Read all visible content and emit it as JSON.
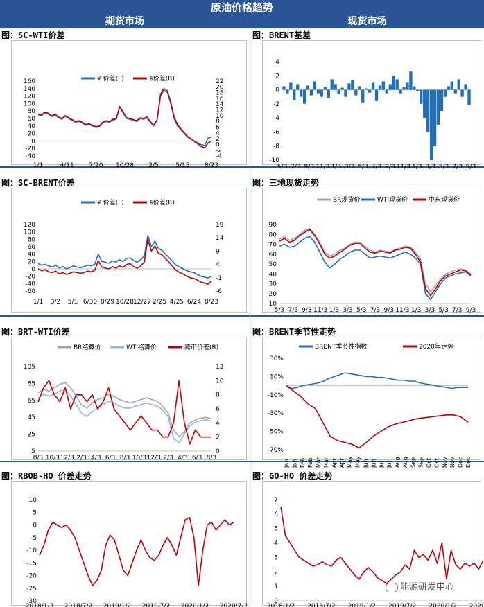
{
  "page_title": "原油价格趋势",
  "left_header": "期货市场",
  "right_header": "现货市场",
  "watermark": "能源研发中心",
  "chart_data": [
    {
      "id": "sc-wti",
      "title": "图：SC-WTI价差",
      "type": "line",
      "legend": [
        "¥ 价差(L)",
        "$价差(R)"
      ],
      "series_colors": [
        "#1f6fbf",
        "#c00000"
      ],
      "ylim": [
        -40,
        160
      ],
      "y_ticks": [
        "160",
        "140",
        "120",
        "100",
        "80",
        "60",
        "40",
        "20",
        "0",
        "-20",
        "-40"
      ],
      "y2lim": [
        -4,
        22
      ],
      "y2_ticks": [
        "22",
        "20",
        "18",
        "16",
        "14",
        "12",
        "10",
        "8",
        "6",
        "4",
        "2",
        "0",
        "-2",
        "-4"
      ],
      "x_ticks": [
        "1/1",
        "4/11",
        "7/20",
        "10/28",
        "2/5",
        "5/15",
        "8/23"
      ],
      "series": [
        {
          "name": "¥ 价差(L)",
          "values": [
            70,
            68,
            75,
            72,
            65,
            70,
            62,
            58,
            66,
            60,
            55,
            50,
            52,
            48,
            42,
            44,
            40,
            36,
            38,
            48,
            52,
            50,
            56,
            58,
            90,
            75,
            60,
            58,
            55,
            52,
            60,
            58,
            62,
            50,
            40,
            55,
            120,
            135,
            130,
            100,
            60,
            40,
            30,
            20,
            10,
            5,
            0,
            -5,
            -10,
            -12,
            8,
            10
          ]
        },
        {
          "name": "$价差(R)",
          "values": [
            72,
            70,
            77,
            74,
            67,
            72,
            64,
            60,
            68,
            62,
            57,
            52,
            54,
            50,
            44,
            46,
            42,
            38,
            40,
            50,
            54,
            52,
            58,
            60,
            92,
            78,
            62,
            60,
            57,
            54,
            62,
            60,
            64,
            52,
            42,
            57,
            125,
            140,
            134,
            104,
            64,
            44,
            32,
            22,
            12,
            6,
            -2,
            -8,
            -15,
            -18,
            -5,
            0
          ]
        }
      ]
    },
    {
      "id": "brent-basis",
      "title": "图：BRENT基差",
      "type": "bar",
      "ylim": [
        -10,
        4
      ],
      "y_ticks": [
        "4",
        "2",
        "0",
        "-2",
        "-4",
        "-6",
        "-8",
        "-10"
      ],
      "x_ticks": [
        "5/3",
        "7/3",
        "9/3",
        "11/3",
        "1/3",
        "3/3",
        "5/3",
        "7/3",
        "9/3",
        "11/3",
        "1/3",
        "3/3",
        "5/3",
        "7/3",
        "9/3"
      ],
      "values": [
        0.5,
        -0.5,
        1,
        -1.5,
        0.8,
        -1,
        -2,
        0.6,
        -0.8,
        1.2,
        -0.5,
        -1,
        0.4,
        -1.2,
        1.5,
        0.8,
        -0.6,
        0.3,
        -1,
        0.9,
        1.4,
        -0.8,
        0.5,
        -1.8,
        0.2,
        -0.4,
        1,
        -1.6,
        0.6,
        1.2,
        -0.5,
        0.8,
        2,
        1.5,
        -0.5,
        0.4,
        1,
        2.6,
        0.5,
        -0.2,
        -2,
        -4,
        -6,
        -10,
        -8,
        -5,
        -3,
        -1,
        0.5,
        1.2,
        -0.5,
        1.5,
        -1,
        0.8,
        -2.2
      ]
    },
    {
      "id": "sc-brent",
      "title": "图：SC-BRENT价差",
      "type": "line",
      "legend": [
        "¥ 价差(L)",
        "$价差(R)"
      ],
      "series_colors": [
        "#1f6fbf",
        "#c00000"
      ],
      "ylim": [
        -60,
        120
      ],
      "y_ticks": [
        "120",
        "100",
        "80",
        "60",
        "40",
        "20",
        "0",
        "-20",
        "-40",
        "-60"
      ],
      "y2lim": [
        -6,
        19
      ],
      "y2_ticks": [
        "19",
        "14",
        "9",
        "4",
        "-1",
        "-6"
      ],
      "x_ticks": [
        "1/1",
        "3/2",
        "5/1",
        "6/30",
        "8/29",
        "10/28",
        "12/27",
        "2/25",
        "4/25",
        "6/24",
        "8/23"
      ],
      "series": [
        {
          "name": "¥ 价差(L)",
          "values": [
            15,
            10,
            12,
            8,
            5,
            10,
            2,
            6,
            0,
            4,
            8,
            5,
            3,
            6,
            10,
            8,
            12,
            40,
            20,
            18,
            15,
            22,
            18,
            25,
            20,
            28,
            30,
            22,
            18,
            25,
            35,
            90,
            60,
            75,
            55,
            50,
            40,
            30,
            20,
            10,
            5,
            0,
            -5,
            -8,
            -10,
            -15,
            -20,
            -22,
            -25,
            -20
          ]
        },
        {
          "name": "$价差(R)",
          "values": [
            0,
            -5,
            -2,
            -8,
            -10,
            -6,
            -14,
            -10,
            -15,
            -12,
            -8,
            -10,
            -12,
            -10,
            -6,
            -8,
            -4,
            22,
            5,
            2,
            0,
            6,
            2,
            8,
            4,
            12,
            14,
            6,
            2,
            8,
            18,
            80,
            48,
            62,
            42,
            38,
            28,
            18,
            6,
            -4,
            -10,
            -14,
            -20,
            -24,
            -26,
            -30,
            -36,
            -38,
            -42,
            -32
          ]
        }
      ]
    },
    {
      "id": "three-spot",
      "title": "图：三地现货走势",
      "type": "line",
      "legend": [
        "BR现货价",
        "WTI现货价",
        "中东现货价"
      ],
      "series_colors": [
        "#a6a6a6",
        "#1f6fbf",
        "#c00000"
      ],
      "ylim": [
        10,
        90
      ],
      "y_ticks": [
        "90",
        "80",
        "70",
        "60",
        "50",
        "40",
        "30",
        "20",
        "10"
      ],
      "x_ticks": [
        "5/3",
        "7/3",
        "9/3",
        "11/3",
        "1/3",
        "3/3",
        "5/3",
        "7/3",
        "9/3",
        "11/3",
        "1/3",
        "3/3",
        "5/3",
        "7/3",
        "9/3"
      ],
      "series": [
        {
          "name": "BR现货价",
          "values": [
            75,
            78,
            74,
            76,
            80,
            84,
            86,
            80,
            72,
            62,
            58,
            60,
            64,
            66,
            70,
            72,
            72,
            68,
            64,
            62,
            64,
            63,
            62,
            65,
            66,
            68,
            67,
            62,
            55,
            30,
            22,
            28,
            35,
            40,
            42,
            44,
            45,
            44,
            40
          ]
        },
        {
          "name": "WTI现货价",
          "values": [
            68,
            70,
            67,
            68,
            72,
            76,
            78,
            72,
            62,
            52,
            46,
            50,
            55,
            58,
            62,
            64,
            64,
            60,
            56,
            57,
            58,
            57,
            56,
            58,
            60,
            62,
            60,
            56,
            50,
            20,
            14,
            22,
            30,
            36,
            38,
            40,
            41,
            42,
            38
          ]
        },
        {
          "name": "中东现货价",
          "values": [
            73,
            76,
            72,
            74,
            79,
            82,
            85,
            79,
            70,
            60,
            56,
            58,
            62,
            65,
            69,
            71,
            71,
            66,
            62,
            61,
            63,
            62,
            61,
            64,
            65,
            67,
            66,
            60,
            52,
            25,
            18,
            25,
            33,
            38,
            40,
            42,
            44,
            43,
            39
          ]
        }
      ]
    },
    {
      "id": "brt-wti",
      "title": "图：BRT-WTI价差",
      "type": "line",
      "legend": [
        "BR结算价",
        "WTI结算价",
        "跨市价差(R)"
      ],
      "series_colors": [
        "#a6a6a6",
        "#8db4e2",
        "#c00000"
      ],
      "ylim": [
        5,
        105
      ],
      "y_ticks": [
        "105",
        "85",
        "65",
        "45",
        "25",
        "5"
      ],
      "y2lim": [
        0,
        12
      ],
      "y2_ticks": [
        "12",
        "10",
        "8",
        "6",
        "4",
        "2",
        "0"
      ],
      "x_ticks": [
        "8/3",
        "10/3",
        "12/3",
        "2/3",
        "4/3",
        "6/3",
        "8/3",
        "10/3",
        "12/3",
        "2/3",
        "4/3",
        "6/3",
        "8/3"
      ],
      "series": [
        {
          "name": "BR结算价",
          "values": [
            74,
            78,
            76,
            80,
            84,
            86,
            80,
            70,
            60,
            56,
            62,
            66,
            68,
            72,
            70,
            66,
            64,
            62,
            64,
            66,
            68,
            66,
            64,
            58,
            50,
            30,
            22,
            28,
            38,
            42,
            44,
            45,
            43
          ]
        },
        {
          "name": "WTI结算价",
          "values": [
            68,
            72,
            70,
            72,
            76,
            78,
            70,
            60,
            50,
            46,
            52,
            56,
            60,
            64,
            62,
            58,
            56,
            56,
            58,
            60,
            62,
            60,
            58,
            54,
            46,
            20,
            15,
            25,
            35,
            39,
            41,
            42,
            40
          ]
        },
        {
          "name": "跨市价差(R)",
          "values": [
            7,
            9,
            10,
            8,
            7,
            9,
            6,
            8,
            8,
            7,
            8,
            6,
            7,
            9,
            6,
            5,
            4,
            3,
            4,
            5,
            4,
            3,
            3,
            2,
            2,
            4,
            10,
            4,
            1,
            3,
            2,
            2,
            2
          ]
        }
      ]
    },
    {
      "id": "brent-seasonal",
      "title": "图：BRENT季节性走势",
      "type": "line",
      "legend": [
        "BRENT季节性指数",
        "2020年走势"
      ],
      "series_colors": [
        "#1f6fbf",
        "#c00000"
      ],
      "ylim": [
        -70,
        30
      ],
      "y_ticks": [
        "30%",
        "10%",
        "-10%",
        "-30%",
        "-50%",
        "-70%"
      ],
      "x_ticks": [
        "Jan",
        "Jan",
        "Feb",
        "Feb",
        "Mar",
        "Mar",
        "Apr",
        "Apr",
        "May",
        "May",
        "Jun",
        "Jun",
        "Jul",
        "Jul",
        "Aug",
        "Aug",
        "Sep",
        "Sep",
        "Oct",
        "Oct",
        "Nov",
        "Nov",
        "Dec",
        "Dec"
      ],
      "series": [
        {
          "name": "BRENT季节性指数",
          "values": [
            0,
            -3,
            -2,
            0,
            1,
            2,
            3,
            5,
            8,
            10,
            12,
            14,
            13,
            12,
            11,
            10,
            10,
            9,
            9,
            8,
            7,
            6,
            6,
            5,
            5,
            3,
            2,
            1,
            0,
            -1,
            -2,
            -3,
            -2,
            -2,
            -2
          ]
        },
        {
          "name": "2020年走势",
          "values": [
            0,
            -6,
            -12,
            -20,
            -25,
            -40,
            -55,
            -60,
            -62,
            -64,
            -68,
            -62,
            -55,
            -50,
            -45,
            -42,
            -40,
            -38,
            -36,
            -35,
            -34,
            -33,
            -32,
            -32,
            -34,
            -40
          ]
        }
      ]
    },
    {
      "id": "rbob-ho",
      "title": "图：RBOB-HO 价差走势",
      "type": "line",
      "series_colors": [
        "#c00000"
      ],
      "ylim": [
        -30,
        10
      ],
      "y_ticks": [
        "10",
        "5",
        "0",
        "-5",
        "-10",
        "-15",
        "-20",
        "-25",
        "-30"
      ],
      "x_ticks": [
        "2018/1/2",
        "2018/7/2",
        "2019/1/2",
        "2019/7/2",
        "2020/1/2",
        "2020/7/2"
      ],
      "series": [
        {
          "name": "",
          "values": [
            -12,
            -8,
            -2,
            1,
            0,
            -1,
            0,
            -2,
            -5,
            -10,
            -15,
            -20,
            -24,
            -22,
            -18,
            -8,
            -4,
            -6,
            -12,
            -18,
            -20,
            -15,
            -10,
            -6,
            -10,
            -13,
            -14,
            -12,
            -8,
            -5,
            -8,
            -12,
            -5,
            2,
            3,
            -5,
            -24,
            -10,
            0,
            1,
            -2,
            0,
            2,
            0,
            1
          ]
        }
      ]
    },
    {
      "id": "go-ho",
      "title": "图：GO-HO 价差走势",
      "type": "line",
      "series_colors": [
        "#c00000"
      ],
      "ylim": [
        0,
        7
      ],
      "y_ticks": [
        "7",
        "6",
        "5",
        "4",
        "3",
        "2",
        "1",
        "0"
      ],
      "x_ticks": [
        "2018/1/2",
        "2018/7/2",
        "2019/1/2",
        "2019/7/2",
        "2020/1/2",
        "2020/7/2"
      ],
      "series": [
        {
          "name": "",
          "values": [
            6.5,
            4.5,
            4,
            3.5,
            3,
            2.8,
            2.6,
            2.4,
            2.5,
            2.7,
            2.5,
            2.4,
            2.8,
            3,
            2.6,
            2.2,
            1.8,
            1.5,
            2,
            2.3,
            2,
            1.6,
            1.4,
            1.2,
            1.5,
            1.8,
            2,
            2.5,
            2.2,
            3.5,
            3,
            3.2,
            2.8,
            3.5,
            2.6,
            4,
            1.5,
            3.5,
            2.5,
            2.2,
            2.6,
            2.4,
            2.6,
            2.2,
            2.8
          ]
        }
      ]
    }
  ]
}
